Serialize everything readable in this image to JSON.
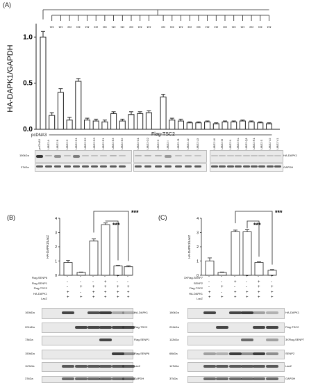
{
  "panels": {
    "a": "(A)",
    "b": "(B)",
    "c": "(C)"
  },
  "chart_data": [
    {
      "type": "bar",
      "ylabel": "HA-DAPK1/GAPDH",
      "ylim": [
        0,
        1.1
      ],
      "yticks": [
        "0.0",
        "0.5",
        "1.0"
      ],
      "categories": [
        "pcDNA3",
        "UBE2 A",
        "UBE2 B",
        "UBE2 C",
        "UBE2 D1",
        "UBE2 D2",
        "UBE2 D3",
        "UBE2 E1",
        "UBE2 E3",
        "UBE2 E2",
        "UBE2 G1",
        "UBE2 G2",
        "UBE2 H",
        "UBE2 I",
        "UBE2 J1",
        "UBE2 J2",
        "UBE2 L3",
        "UBE2 L6",
        "UBE2 M",
        "UBE2 N",
        "UBE2 NL",
        "UBE2 Q1",
        "UBE2 R1",
        "UBE2 S",
        "UBE2 V2",
        "UBE2 V1"
      ],
      "values": [
        1.0,
        0.15,
        0.4,
        0.1,
        0.52,
        0.1,
        0.09,
        0.08,
        0.17,
        0.09,
        0.16,
        0.17,
        0.18,
        0.35,
        0.1,
        0.09,
        0.07,
        0.07,
        0.08,
        0.06,
        0.08,
        0.08,
        0.09,
        0.08,
        0.07,
        0.06
      ],
      "errors": [
        0.06,
        0.03,
        0.04,
        0.03,
        0.03,
        0.02,
        0.02,
        0.02,
        0.02,
        0.02,
        0.03,
        0.02,
        0.02,
        0.03,
        0.02,
        0.02,
        0.01,
        0.01,
        0.01,
        0.01,
        0.01,
        0.01,
        0.01,
        0.01,
        0.01,
        0.01
      ],
      "significance": "***",
      "xgroup_left": "pcDNA3",
      "xgroup_right": "Flag-TSC2"
    },
    {
      "type": "bar",
      "ylabel": "HA-DAPK1/LacZ",
      "ylim": [
        0,
        4
      ],
      "yticks": [
        "0",
        "1",
        "2",
        "3",
        "4"
      ],
      "categories": [
        "1",
        "2",
        "3",
        "4",
        "5",
        "6"
      ],
      "values": [
        0.9,
        0.2,
        2.4,
        3.55,
        0.65,
        0.6
      ],
      "errors": [
        0.15,
        0.03,
        0.15,
        0.12,
        0.05,
        0.06
      ],
      "significance": "***"
    },
    {
      "type": "bar",
      "ylabel": "HA-DAPK1/LacZ",
      "ylim": [
        0,
        4
      ],
      "yticks": [
        "0",
        "1",
        "2",
        "3",
        "4"
      ],
      "categories": [
        "1",
        "2",
        "3",
        "4",
        "5",
        "6"
      ],
      "values": [
        1.0,
        0.2,
        3.05,
        3.05,
        0.9,
        0.35
      ],
      "errors": [
        0.22,
        0.03,
        0.12,
        0.15,
        0.04,
        0.05
      ],
      "significance": "***"
    }
  ],
  "blot_a": {
    "size_marker": "150kDa",
    "gapdh_marker": "37kDa",
    "lane_labels": [
      "pcDNA3",
      "UBE2 A",
      "UBE2 B",
      "UBE2 C",
      "UBE2 D1",
      "UBE2 D2",
      "UBE2 D3",
      "UBE2 E1",
      "UBE2 E3",
      "UBE2 E2",
      "UBE2 G1",
      "UBE2 G2",
      "UBE2 H",
      "UBE2 I",
      "UBE2 J1",
      "UBE2 J2",
      "UBE2 L3",
      "UBE2 L6",
      "UBE2 M",
      "UBE2 N",
      "UBE2 NL",
      "UBE2 Q1",
      "UBE2 R1",
      "UBE2 S",
      "UBE2 V2",
      "UBE2 V1"
    ],
    "target_label": "HA-DAPK1",
    "loading_label": "GAPDH"
  },
  "panel_b": {
    "rows": [
      {
        "label": "Flag-SENP6",
        "signs": [
          "-",
          "-",
          "-",
          "-",
          "+",
          "-"
        ]
      },
      {
        "label": "Flag-SENP1",
        "signs": [
          "-",
          "-",
          "-",
          "+",
          "-",
          "-"
        ]
      },
      {
        "label": "Flag-TSC2",
        "signs": [
          "-",
          "+",
          "+",
          "+",
          "+",
          "+"
        ]
      },
      {
        "label": "HA-DAPK1",
        "signs": [
          "+",
          "-",
          "+",
          "+",
          "+",
          "+"
        ]
      },
      {
        "label": "LacZ",
        "signs": [
          "+",
          "+",
          "+",
          "+",
          "+",
          "+"
        ]
      }
    ],
    "blots": [
      {
        "mw": "160kDa",
        "name": "HA-DAPK1"
      },
      {
        "mw": "201kDa",
        "name": "Flag-TSC2"
      },
      {
        "mw": "73kDa",
        "name": "Flag-SENP1"
      },
      {
        "mw": "150kDa",
        "name": "Flag-SENP6"
      },
      {
        "mw": "117kDa",
        "name": "LacZ"
      },
      {
        "mw": "37kDa",
        "name": "GAPDH"
      }
    ]
  },
  "panel_c": {
    "rows": [
      {
        "label": "3XFlag-SENP7",
        "signs": [
          "-",
          "-",
          "-",
          "+",
          "-",
          "+"
        ]
      },
      {
        "label": "SENP2",
        "signs": [
          "-",
          "-",
          "+",
          "-",
          "+",
          "-"
        ]
      },
      {
        "label": "Flag-TSC2",
        "signs": [
          "-",
          "+",
          "-",
          "-",
          "+",
          "+"
        ]
      },
      {
        "label": "HA-DAPK1",
        "signs": [
          "+",
          "-",
          "+",
          "+",
          "+",
          "+"
        ]
      },
      {
        "label": "LacZ",
        "signs": [
          "+",
          "+",
          "+",
          "+",
          "+",
          "+"
        ]
      }
    ],
    "blots": [
      {
        "mw": "180kDa",
        "name": "HA-DAPK1"
      },
      {
        "mw": "201kDa",
        "name": "Flag-TSC2"
      },
      {
        "mw": "112kDa",
        "name": "3XFlag-SENP7"
      },
      {
        "mw": "68kDa",
        "name": "SENP2"
      },
      {
        "mw": "117kDa",
        "name": "LacZ"
      },
      {
        "mw": "37kDa",
        "name": "GAPDH"
      }
    ]
  }
}
